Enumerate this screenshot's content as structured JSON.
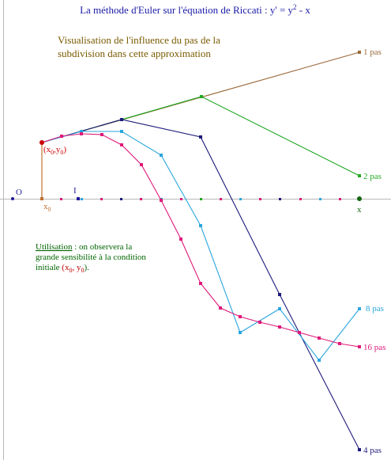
{
  "title": {
    "main": "La méthode d'Euler sur l'équation de Riccati : y' = y",
    "sup": "2",
    "tail": " - x"
  },
  "description": {
    "line1": "Visualisation de l'influence du pas de la",
    "line2": "subdivision dans cette approximation"
  },
  "usage": {
    "label": "Utilisation",
    "line1_rest": " : on observera la",
    "line2": "grande sensibilité à la condition",
    "line3_prefix": "initiale ",
    "x0": "(x",
    "x0_sub": "0",
    "sep": ", y",
    "y0_sub": "0",
    "close": ").",
    "red_color": "#c00000"
  },
  "points": {
    "origin": "O",
    "unit": "I",
    "x_end": "x",
    "x0": "x",
    "x0_sub": "0",
    "start_open": "(x",
    "start_sub1": "0",
    "start_mid": ",y",
    "start_sub2": "0",
    "start_close": ")"
  },
  "series_labels": {
    "p1": "1 pas",
    "p2": "2 pas",
    "p4": "4 pas",
    "p8": "8 pas",
    "p16": "16 pas"
  },
  "colors": {
    "p1": "#9a6a3a",
    "p2": "#22aa22",
    "p4": "#1e1a7a",
    "p8": "#2aa6de",
    "p16": "#e0187a",
    "axis": "#b0b0b0",
    "vertical_link": "#c07030",
    "start_point": "#cc0000"
  }
}
